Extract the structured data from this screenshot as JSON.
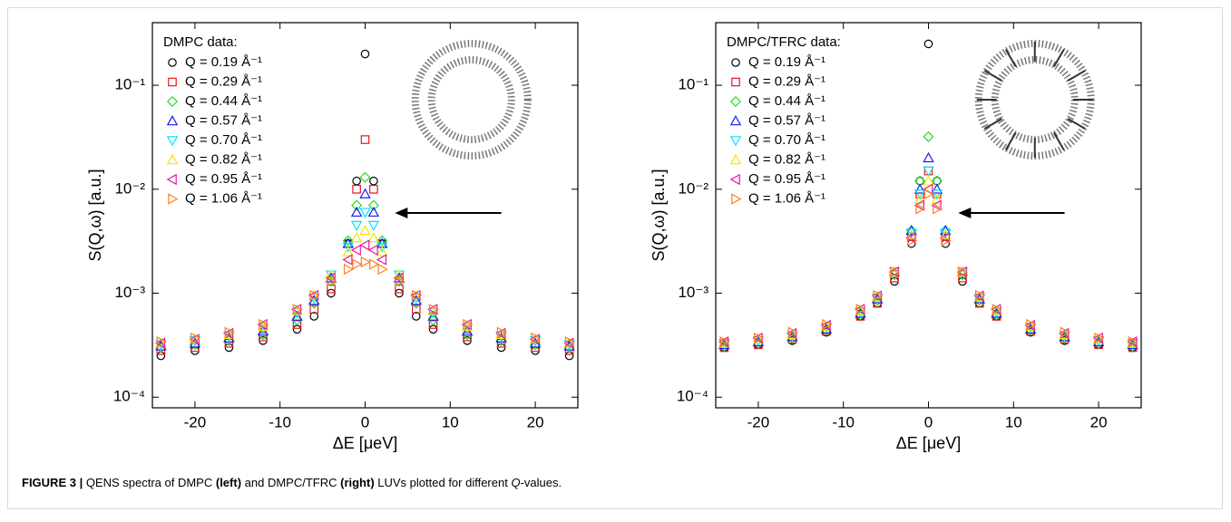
{
  "chart_data": [
    {
      "type": "scatter",
      "log_y": true,
      "legend_title": "DMPC data:",
      "xlabel": "ΔE [μeV]",
      "ylabel": "S(Q,ω) [a.u.]",
      "xlim": [
        -25,
        25
      ],
      "xticks": [
        -20,
        -10,
        0,
        10,
        20
      ],
      "ylim": [
        7.9e-05,
        0.4
      ],
      "yticks": [
        {
          "value": 0.0001,
          "label": "10⁻⁴"
        },
        {
          "value": 0.001,
          "label": "10⁻³"
        },
        {
          "value": 0.01,
          "label": "10⁻²"
        },
        {
          "value": 0.1,
          "label": "10⁻¹"
        }
      ],
      "x": [
        -24,
        -20,
        -16,
        -12,
        -8,
        -6,
        -4,
        -2,
        -1,
        0,
        1,
        2,
        4,
        6,
        8,
        12,
        16,
        20,
        24
      ],
      "series": [
        {
          "name": "Q = 0.19 Å⁻¹",
          "color": "#000000",
          "marker": "circle",
          "values": [
            0.00025,
            0.00028,
            0.0003,
            0.00035,
            0.00045,
            0.0006,
            0.001,
            0.003,
            0.012,
            0.2,
            0.012,
            0.003,
            0.001,
            0.0006,
            0.00045,
            0.00035,
            0.0003,
            0.00028,
            0.00025
          ]
        },
        {
          "name": "Q = 0.29 Å⁻¹",
          "color": "#e8141c",
          "marker": "square",
          "values": [
            0.00028,
            0.0003,
            0.00033,
            0.00038,
            0.0005,
            0.0007,
            0.0011,
            0.003,
            0.01,
            0.03,
            0.01,
            0.003,
            0.0011,
            0.0007,
            0.0005,
            0.00038,
            0.00033,
            0.0003,
            0.00028
          ]
        },
        {
          "name": "Q = 0.44 Å⁻¹",
          "color": "#22dd22",
          "marker": "diamond",
          "values": [
            0.0003,
            0.00032,
            0.00035,
            0.0004,
            0.00055,
            0.0008,
            0.0013,
            0.0032,
            0.007,
            0.013,
            0.007,
            0.0032,
            0.0013,
            0.0008,
            0.00055,
            0.0004,
            0.00035,
            0.00032,
            0.0003
          ]
        },
        {
          "name": "Q = 0.57 Å⁻¹",
          "color": "#1a1aff",
          "marker": "tri-up",
          "values": [
            0.00031,
            0.00033,
            0.00037,
            0.00043,
            0.0006,
            0.00085,
            0.0014,
            0.003,
            0.006,
            0.009,
            0.006,
            0.003,
            0.0014,
            0.00085,
            0.0006,
            0.00043,
            0.00037,
            0.00033,
            0.00031
          ]
        },
        {
          "name": "Q = 0.70 Å⁻¹",
          "color": "#00e5ff",
          "marker": "tri-down",
          "values": [
            0.00032,
            0.00035,
            0.00039,
            0.00046,
            0.00065,
            0.0009,
            0.0015,
            0.0028,
            0.0045,
            0.006,
            0.0045,
            0.0028,
            0.0015,
            0.0009,
            0.00065,
            0.00046,
            0.00039,
            0.00035,
            0.00032
          ]
        },
        {
          "name": "Q = 0.82 Å⁻¹",
          "color": "#f2e600",
          "marker": "tri-up",
          "values": [
            0.00033,
            0.00036,
            0.0004,
            0.00048,
            0.00068,
            0.00095,
            0.0015,
            0.0025,
            0.0034,
            0.004,
            0.0034,
            0.0025,
            0.0015,
            0.00095,
            0.00068,
            0.00048,
            0.0004,
            0.00036,
            0.00033
          ]
        },
        {
          "name": "Q = 0.95 Å⁻¹",
          "color": "#e6199e",
          "marker": "tri-left",
          "values": [
            0.00033,
            0.00036,
            0.00041,
            0.0005,
            0.0007,
            0.00095,
            0.0014,
            0.0021,
            0.0026,
            0.0029,
            0.0026,
            0.0021,
            0.0014,
            0.00095,
            0.0007,
            0.0005,
            0.00041,
            0.00036,
            0.00033
          ]
        },
        {
          "name": "Q = 1.06 Å⁻¹",
          "color": "#ff7f1a",
          "marker": "tri-right",
          "values": [
            0.00034,
            0.00037,
            0.00042,
            0.0005,
            0.0007,
            0.00095,
            0.0013,
            0.0017,
            0.0019,
            0.002,
            0.0019,
            0.0017,
            0.0013,
            0.00095,
            0.0007,
            0.0005,
            0.00042,
            0.00037,
            0.00034
          ]
        }
      ]
    },
    {
      "type": "scatter",
      "log_y": true,
      "legend_title": "DMPC/TFRC data:",
      "xlabel": "ΔE [μeV]",
      "ylabel": "S(Q,ω) [a.u.]",
      "xlim": [
        -25,
        25
      ],
      "xticks": [
        -20,
        -10,
        0,
        10,
        20
      ],
      "ylim": [
        7.9e-05,
        0.4
      ],
      "yticks": [
        {
          "value": 0.0001,
          "label": "10⁻⁴"
        },
        {
          "value": 0.001,
          "label": "10⁻³"
        },
        {
          "value": 0.01,
          "label": "10⁻²"
        },
        {
          "value": 0.1,
          "label": "10⁻¹"
        }
      ],
      "x": [
        -24,
        -20,
        -16,
        -12,
        -8,
        -6,
        -4,
        -2,
        -1,
        0,
        1,
        2,
        4,
        6,
        8,
        12,
        16,
        20,
        24
      ],
      "series": [
        {
          "name": "Q = 0.19 Å⁻¹",
          "color": "#000000",
          "marker": "circle",
          "values": [
            0.0003,
            0.00032,
            0.00035,
            0.00042,
            0.0006,
            0.0008,
            0.0013,
            0.003,
            0.012,
            0.25,
            0.012,
            0.003,
            0.0013,
            0.0008,
            0.0006,
            0.00042,
            0.00035,
            0.00032,
            0.0003
          ]
        },
        {
          "name": "Q = 0.29 Å⁻¹",
          "color": "#e8141c",
          "marker": "square",
          "values": [
            0.0003,
            0.00032,
            0.00036,
            0.00043,
            0.0006,
            0.0008,
            0.0014,
            0.0035,
            0.009,
            0.015,
            0.009,
            0.0035,
            0.0014,
            0.0008,
            0.0006,
            0.00043,
            0.00036,
            0.00032,
            0.0003
          ]
        },
        {
          "name": "Q = 0.44 Å⁻¹",
          "color": "#22dd22",
          "marker": "diamond",
          "values": [
            0.00031,
            0.00033,
            0.00037,
            0.00044,
            0.00062,
            0.00085,
            0.0015,
            0.004,
            0.012,
            0.032,
            0.012,
            0.004,
            0.0015,
            0.00085,
            0.00062,
            0.00044,
            0.00037,
            0.00033,
            0.00031
          ]
        },
        {
          "name": "Q = 0.57 Å⁻¹",
          "color": "#1a1aff",
          "marker": "tri-up",
          "values": [
            0.00032,
            0.00034,
            0.00038,
            0.00045,
            0.00064,
            0.00088,
            0.0016,
            0.004,
            0.01,
            0.02,
            0.01,
            0.004,
            0.0016,
            0.00088,
            0.00064,
            0.00045,
            0.00038,
            0.00034,
            0.00032
          ]
        },
        {
          "name": "Q = 0.70 Å⁻¹",
          "color": "#00e5ff",
          "marker": "tri-down",
          "values": [
            0.00033,
            0.00035,
            0.00039,
            0.00047,
            0.00066,
            0.0009,
            0.0016,
            0.0038,
            0.009,
            0.015,
            0.009,
            0.0038,
            0.0016,
            0.0009,
            0.00066,
            0.00047,
            0.00039,
            0.00035,
            0.00033
          ]
        },
        {
          "name": "Q = 0.82 Å⁻¹",
          "color": "#f2e600",
          "marker": "tri-up",
          "values": [
            0.00033,
            0.00036,
            0.0004,
            0.00048,
            0.00068,
            0.00092,
            0.0016,
            0.0036,
            0.008,
            0.012,
            0.008,
            0.0036,
            0.0016,
            0.00092,
            0.00068,
            0.00048,
            0.0004,
            0.00036,
            0.00033
          ]
        },
        {
          "name": "Q = 0.95 Å⁻¹",
          "color": "#e6199e",
          "marker": "tri-left",
          "values": [
            0.00034,
            0.00037,
            0.00041,
            0.00049,
            0.0007,
            0.00094,
            0.0016,
            0.0034,
            0.007,
            0.01,
            0.007,
            0.0034,
            0.0016,
            0.00094,
            0.0007,
            0.00049,
            0.00041,
            0.00037,
            0.00034
          ]
        },
        {
          "name": "Q = 1.06 Å⁻¹",
          "color": "#ff7f1a",
          "marker": "tri-right",
          "values": [
            0.00034,
            0.00037,
            0.00042,
            0.0005,
            0.0007,
            0.00095,
            0.0016,
            0.0032,
            0.0065,
            0.009,
            0.0065,
            0.0032,
            0.0016,
            0.00095,
            0.0007,
            0.0005,
            0.00042,
            0.00037,
            0.00034
          ]
        }
      ]
    }
  ],
  "caption": [
    {
      "text": "FIGURE 3 |",
      "bold": true
    },
    {
      "text": " QENS spectra of DMPC "
    },
    {
      "text": "(left)",
      "bold": true
    },
    {
      "text": " and DMPC/TFRC "
    },
    {
      "text": "(right)",
      "bold": true
    },
    {
      "text": " LUVs plotted for different "
    },
    {
      "text": "Q",
      "italic": true
    },
    {
      "text": "-values."
    }
  ]
}
